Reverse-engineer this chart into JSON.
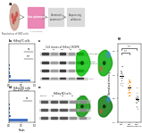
{
  "background": "#ffffff",
  "pink_color": "#e87cae",
  "arrow_color": "#888888",
  "bar_color": "#4472c4",
  "panel_b_bars": [
    0.85,
    0.06,
    0.04,
    0.03,
    0.025,
    0.02,
    0.015,
    0.01,
    0.008,
    0.005
  ],
  "panel_d_bars": [
    0.72,
    0.07,
    0.05,
    0.04,
    0.03,
    0.02,
    0.015,
    0.01
  ],
  "wb_band_color": "#555555",
  "wb_bg": "#d8d8d8",
  "cell_green": "#44cc44",
  "cell_green2": "#22aa22",
  "cell_bg": "#000000",
  "dot_colors": [
    "#888888",
    "#ff8800",
    "#888888"
  ],
  "dot_line_color": "#aaaaaa",
  "scatter_bg": "#ffffff"
}
